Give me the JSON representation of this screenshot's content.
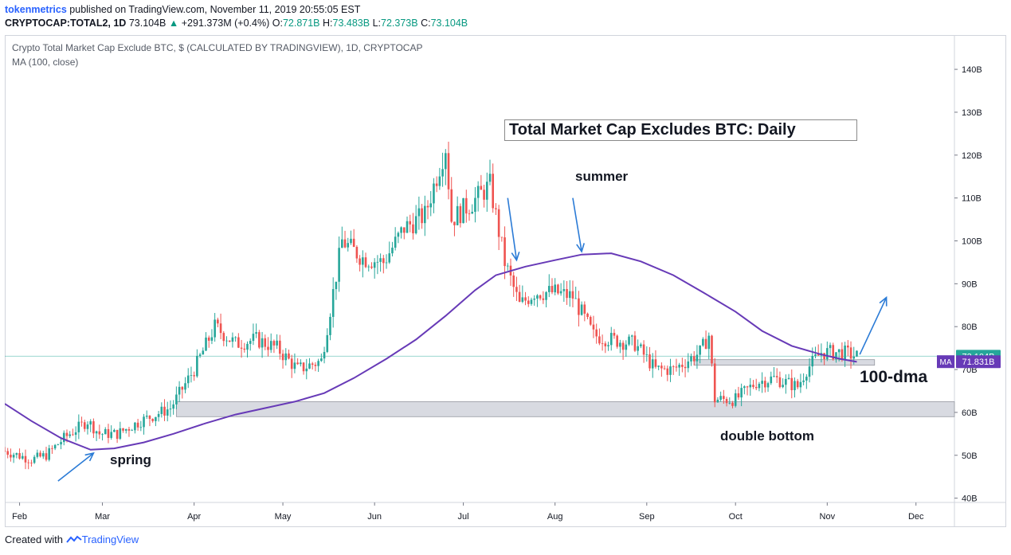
{
  "header": {
    "author": "tokenmetrics",
    "published": "published on TradingView.com, November 11, 2019 20:55:05 EST",
    "symbol": "CRYPTOCAP:TOTAL2, 1D",
    "last": "73.104B",
    "change_arrow": "▲",
    "change": "+291.373M (+0.4%)",
    "o_label": "O:",
    "o_value": "72.871B",
    "h_label": "H:",
    "h_value": "73.483B",
    "l_label": "L:",
    "l_value": "72.373B",
    "c_label": "C:",
    "c_value": "73.104B"
  },
  "legend": {
    "series_title": "Crypto Total Market Cap Exclude BTC, $ (CALCULATED BY TRADINGVIEW), 1D, CRYPTOCAP",
    "indicator": "MA (100, close)"
  },
  "annotations": {
    "title": "Total Market Cap Excludes BTC: Daily",
    "summer": "summer",
    "spring": "spring",
    "double_bottom": "double bottom",
    "dma": "100-dma"
  },
  "footer": {
    "created_with": "Created with",
    "brand": "TradingView"
  },
  "colors": {
    "up": "#26a69a",
    "down": "#ef5350",
    "ma": "#673ab7",
    "annotation_arrow": "#2b7bd6",
    "zone_fill": "#d1d4dc",
    "price_label": "#26a69a"
  },
  "chart_data": {
    "type": "candlestick",
    "title": "Crypto Total Market Cap Exclude BTC, $ (CALCULATED BY TRADINGVIEW), 1D, CRYPTOCAP",
    "ylabel": "",
    "xlabel": "",
    "y_unit": "B",
    "y_ticks": [
      40,
      50,
      60,
      70,
      80,
      90,
      100,
      110,
      120,
      130,
      140
    ],
    "ylim": [
      39,
      148
    ],
    "x_ticks": [
      "Feb",
      "Mar",
      "Apr",
      "May",
      "Jun",
      "Jul",
      "Aug",
      "Sep",
      "Oct",
      "Nov",
      "Dec"
    ],
    "x_range": [
      "2019-01-27",
      "2019-12-14"
    ],
    "grid": false,
    "price_path": [
      [
        "2019-01-27",
        51
      ],
      [
        "2019-02-05",
        49
      ],
      [
        "2019-02-10",
        50
      ],
      [
        "2019-02-16",
        54
      ],
      [
        "2019-02-24",
        58
      ],
      [
        "2019-02-28",
        55
      ],
      [
        "2019-03-06",
        55
      ],
      [
        "2019-03-14",
        58
      ],
      [
        "2019-03-24",
        61
      ],
      [
        "2019-04-01",
        70
      ],
      [
        "2019-04-08",
        80
      ],
      [
        "2019-04-15",
        76
      ],
      [
        "2019-04-22",
        77
      ],
      [
        "2019-04-29",
        75
      ],
      [
        "2019-05-06",
        70
      ],
      [
        "2019-05-14",
        72
      ],
      [
        "2019-05-21",
        100
      ],
      [
        "2019-05-28",
        96
      ],
      [
        "2019-06-04",
        95
      ],
      [
        "2019-06-11",
        103
      ],
      [
        "2019-06-18",
        106
      ],
      [
        "2019-06-25",
        122
      ],
      [
        "2019-06-27",
        105
      ],
      [
        "2019-07-04",
        109
      ],
      [
        "2019-07-10",
        113
      ],
      [
        "2019-07-15",
        95
      ],
      [
        "2019-07-20",
        85
      ],
      [
        "2019-07-25",
        88
      ],
      [
        "2019-08-01",
        88
      ],
      [
        "2019-08-07",
        87
      ],
      [
        "2019-08-14",
        78
      ],
      [
        "2019-08-20",
        77
      ],
      [
        "2019-08-28",
        76
      ],
      [
        "2019-09-04",
        70
      ],
      [
        "2019-09-10",
        70
      ],
      [
        "2019-09-19",
        74
      ],
      [
        "2019-09-22",
        78
      ],
      [
        "2019-09-24",
        63
      ],
      [
        "2019-10-01",
        63
      ],
      [
        "2019-10-08",
        67
      ],
      [
        "2019-10-14",
        68
      ],
      [
        "2019-10-22",
        66
      ],
      [
        "2019-10-25",
        70
      ],
      [
        "2019-10-30",
        74
      ],
      [
        "2019-11-06",
        74
      ],
      [
        "2019-11-11",
        73.1
      ]
    ],
    "ma_period": 100,
    "ma_points": [
      [
        "2019-01-27",
        62
      ],
      [
        "2019-02-05",
        58
      ],
      [
        "2019-02-15",
        54
      ],
      [
        "2019-02-25",
        51.3
      ],
      [
        "2019-03-05",
        51.6
      ],
      [
        "2019-03-15",
        53
      ],
      [
        "2019-03-25",
        55
      ],
      [
        "2019-04-05",
        57.5
      ],
      [
        "2019-04-15",
        59.5
      ],
      [
        "2019-04-25",
        61
      ],
      [
        "2019-05-05",
        62.5
      ],
      [
        "2019-05-15",
        64.5
      ],
      [
        "2019-05-25",
        68
      ],
      [
        "2019-06-05",
        72.5
      ],
      [
        "2019-06-15",
        77
      ],
      [
        "2019-06-25",
        82.5
      ],
      [
        "2019-07-05",
        88.5
      ],
      [
        "2019-07-12",
        92
      ],
      [
        "2019-07-22",
        94
      ],
      [
        "2019-08-01",
        95.5
      ],
      [
        "2019-08-10",
        96.8
      ],
      [
        "2019-08-20",
        97.1
      ],
      [
        "2019-08-30",
        95.2
      ],
      [
        "2019-09-10",
        92
      ],
      [
        "2019-09-20",
        88
      ],
      [
        "2019-10-01",
        83.5
      ],
      [
        "2019-10-10",
        79
      ],
      [
        "2019-10-20",
        75.5
      ],
      [
        "2019-10-30",
        73.5
      ],
      [
        "2019-11-06",
        72.4
      ],
      [
        "2019-11-11",
        71.8
      ]
    ],
    "zones": [
      {
        "from": "2019-03-26",
        "to": "2019-12-14",
        "low": 59,
        "high": 62.5
      },
      {
        "from": "2019-09-17",
        "to": "2019-11-17",
        "low": 71,
        "high": 72.3
      }
    ],
    "price_labels": [
      {
        "value": 73.104,
        "text": "73.104B",
        "color": "#26a69a"
      },
      {
        "value": 71.831,
        "text": "71.831B",
        "color": "#673ab7",
        "tag": "MA"
      }
    ],
    "arrows": [
      {
        "from": [
          "2019-02-14",
          44
        ],
        "to": [
          "2019-02-26",
          50.5
        ]
      },
      {
        "from": [
          "2019-07-16",
          110
        ],
        "to": [
          "2019-07-19",
          95.5
        ]
      },
      {
        "from": [
          "2019-08-07",
          110
        ],
        "to": [
          "2019-08-10",
          97.5
        ]
      },
      {
        "from": [
          "2019-11-12",
          73.5
        ],
        "to": [
          "2019-11-21",
          86.8
        ]
      }
    ]
  }
}
